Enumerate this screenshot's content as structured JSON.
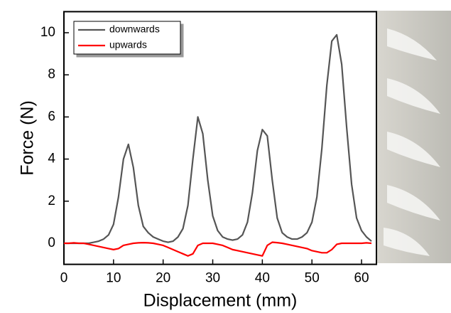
{
  "chart_data": {
    "type": "line",
    "xlabel": "Displacement (mm)",
    "ylabel": "Force (N)",
    "x": [
      0,
      1,
      2,
      3,
      4,
      5,
      6,
      7,
      8,
      9,
      10,
      11,
      12,
      13,
      14,
      15,
      16,
      17,
      18,
      19,
      20,
      21,
      22,
      23,
      24,
      25,
      26,
      27,
      28,
      29,
      30,
      31,
      32,
      33,
      34,
      35,
      36,
      37,
      38,
      39,
      40,
      41,
      42,
      43,
      44,
      45,
      46,
      47,
      48,
      49,
      50,
      51,
      52,
      53,
      54,
      55,
      56,
      57,
      58,
      59,
      60,
      61,
      62
    ],
    "series": [
      {
        "name": "downwards",
        "color": "#555555",
        "values": [
          0,
          0,
          0,
          0,
          0,
          0,
          0.05,
          0.1,
          0.2,
          0.4,
          0.9,
          2.2,
          4.0,
          4.7,
          3.6,
          1.8,
          0.8,
          0.5,
          0.3,
          0.2,
          0.1,
          0.05,
          0.1,
          0.3,
          0.7,
          1.8,
          4.0,
          6.0,
          5.2,
          3.0,
          1.3,
          0.6,
          0.3,
          0.2,
          0.15,
          0.2,
          0.4,
          1.0,
          2.4,
          4.4,
          5.4,
          5.1,
          3.0,
          1.2,
          0.5,
          0.3,
          0.2,
          0.2,
          0.3,
          0.5,
          1.0,
          2.2,
          4.5,
          7.5,
          9.6,
          9.9,
          8.5,
          5.5,
          2.8,
          1.2,
          0.6,
          0.3,
          0.1
        ]
      },
      {
        "name": "upwards",
        "color": "#ff0000",
        "values": [
          0,
          0,
          0.02,
          0,
          0,
          -0.05,
          -0.1,
          -0.15,
          -0.2,
          -0.25,
          -0.3,
          -0.25,
          -0.1,
          -0.05,
          0,
          0.02,
          0.03,
          0.02,
          0,
          -0.05,
          -0.1,
          -0.2,
          -0.3,
          -0.4,
          -0.5,
          -0.6,
          -0.5,
          -0.1,
          0,
          0,
          0,
          -0.05,
          -0.1,
          -0.2,
          -0.3,
          -0.35,
          -0.4,
          -0.45,
          -0.5,
          -0.55,
          -0.6,
          -0.1,
          0.05,
          0.03,
          0,
          -0.05,
          -0.1,
          -0.15,
          -0.2,
          -0.25,
          -0.35,
          -0.4,
          -0.45,
          -0.45,
          -0.3,
          -0.05,
          0,
          0,
          0,
          0,
          0,
          0.02,
          0
        ]
      }
    ],
    "xlim": [
      0,
      63
    ],
    "ylim": [
      -1,
      11
    ],
    "xticks": [
      0,
      10,
      20,
      30,
      40,
      50,
      60
    ],
    "yticks": [
      0,
      2,
      4,
      6,
      8,
      10
    ],
    "legend": "upper left"
  }
}
